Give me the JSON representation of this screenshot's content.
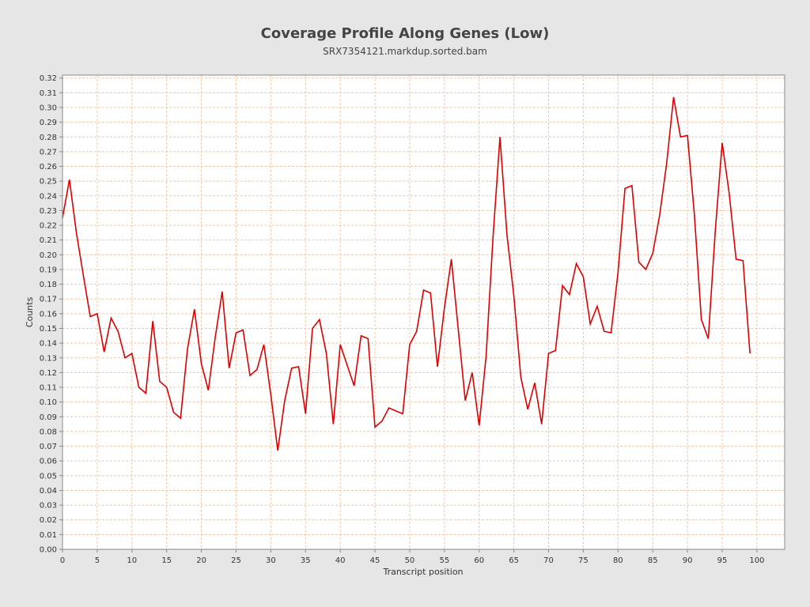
{
  "chart_data": {
    "type": "line",
    "title": "Coverage Profile Along Genes (Low)",
    "subtitle": "SRX7354121.markdup.sorted.bam",
    "xlabel": "Transcript position",
    "ylabel": "Counts",
    "xlim": [
      0,
      104
    ],
    "ylim": [
      0,
      0.322
    ],
    "x_ticks": [
      0,
      5,
      10,
      15,
      20,
      25,
      30,
      35,
      40,
      45,
      50,
      55,
      60,
      65,
      70,
      75,
      80,
      85,
      90,
      95,
      100
    ],
    "y_ticks": [
      0.0,
      0.01,
      0.02,
      0.03,
      0.04,
      0.05,
      0.06,
      0.07,
      0.08,
      0.09,
      0.1,
      0.11,
      0.12,
      0.13,
      0.14,
      0.15,
      0.16,
      0.17,
      0.18,
      0.19,
      0.2,
      0.21,
      0.22,
      0.23,
      0.24,
      0.25,
      0.26,
      0.27,
      0.28,
      0.29,
      0.3,
      0.31,
      0.32
    ],
    "grid": true,
    "line_color": "#dd0000",
    "grid_color": "#f0c8a8",
    "series": [
      {
        "x": [
          0,
          1,
          2,
          3,
          4,
          5,
          6,
          7,
          8,
          9,
          10,
          11,
          12,
          13,
          14,
          15,
          16,
          17,
          18,
          19,
          20,
          21,
          22,
          23,
          24,
          25,
          26,
          27,
          28,
          29,
          30,
          31,
          32,
          33,
          34,
          35,
          36,
          37,
          38,
          39,
          40,
          41,
          42,
          43,
          44,
          45,
          46,
          47,
          48,
          49,
          50,
          51,
          52,
          53,
          54,
          55,
          56,
          57,
          58,
          59,
          60,
          61,
          62,
          63,
          64,
          65,
          66,
          67,
          68,
          69,
          70,
          71,
          72,
          73,
          74,
          75,
          76,
          77,
          78,
          79,
          80,
          81,
          82,
          83,
          84,
          85,
          86,
          87,
          88,
          89,
          90,
          91,
          92,
          93,
          94,
          95,
          96,
          97,
          98,
          99
        ],
        "values": [
          0.225,
          0.251,
          0.215,
          0.186,
          0.158,
          0.16,
          0.134,
          0.157,
          0.148,
          0.13,
          0.133,
          0.11,
          0.106,
          0.155,
          0.114,
          0.11,
          0.093,
          0.089,
          0.136,
          0.163,
          0.126,
          0.108,
          0.144,
          0.175,
          0.123,
          0.147,
          0.149,
          0.118,
          0.122,
          0.139,
          0.105,
          0.067,
          0.101,
          0.123,
          0.124,
          0.092,
          0.15,
          0.156,
          0.133,
          0.085,
          0.139,
          0.125,
          0.111,
          0.145,
          0.143,
          0.083,
          0.087,
          0.096,
          0.094,
          0.092,
          0.139,
          0.148,
          0.176,
          0.174,
          0.124,
          0.164,
          0.197,
          0.149,
          0.101,
          0.12,
          0.084,
          0.131,
          0.212,
          0.28,
          0.214,
          0.172,
          0.117,
          0.095,
          0.113,
          0.085,
          0.133,
          0.135,
          0.179,
          0.173,
          0.194,
          0.185,
          0.153,
          0.165,
          0.148,
          0.147,
          0.188,
          0.245,
          0.247,
          0.195,
          0.19,
          0.201,
          0.227,
          0.262,
          0.307,
          0.28,
          0.281,
          0.227,
          0.156,
          0.143,
          0.216,
          0.276,
          0.242,
          0.197,
          0.196,
          0.133
        ]
      }
    ]
  }
}
